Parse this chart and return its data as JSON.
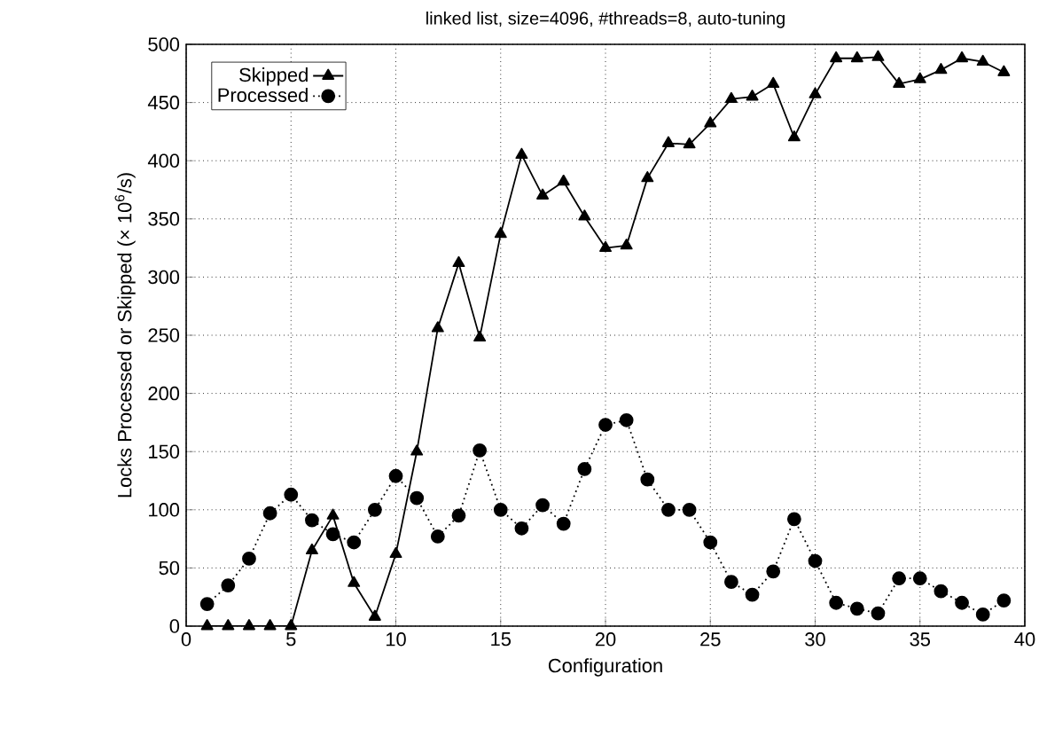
{
  "chart_data": {
    "type": "line",
    "title": "linked list, size=4096, #threads=8, auto-tuning",
    "xlabel": "Configuration",
    "ylabel": "Locks Processed or Skipped (× 10$^{6}$/s)",
    "x": [
      1,
      2,
      3,
      4,
      5,
      6,
      7,
      8,
      9,
      10,
      11,
      12,
      13,
      14,
      15,
      16,
      17,
      18,
      19,
      20,
      21,
      22,
      23,
      24,
      25,
      26,
      27,
      28,
      29,
      30,
      31,
      32,
      33,
      34,
      35,
      36,
      37,
      38,
      39
    ],
    "series": [
      {
        "name": "Skipped",
        "color": "#000000",
        "marker": "triangle",
        "line_style": "solid",
        "values": [
          0,
          0,
          0,
          0,
          0,
          65,
          95,
          37,
          8,
          62,
          150,
          256,
          312,
          248,
          337,
          405,
          370,
          382,
          352,
          325,
          327,
          385,
          415,
          414,
          432,
          453,
          455,
          466,
          420,
          457,
          488,
          488,
          489,
          466,
          470,
          478,
          488,
          485,
          476
        ]
      },
      {
        "name": "Processed",
        "color": "#000000",
        "marker": "circle",
        "line_style": "dotted",
        "values": [
          19,
          35,
          58,
          97,
          113,
          91,
          79,
          72,
          100,
          129,
          110,
          77,
          95,
          151,
          100,
          84,
          104,
          88,
          135,
          173,
          177,
          126,
          100,
          100,
          72,
          38,
          27,
          47,
          92,
          56,
          20,
          15,
          11,
          41,
          41,
          30,
          20,
          10,
          22
        ]
      }
    ],
    "xlim": [
      0,
      40
    ],
    "xticks": [
      0,
      5,
      10,
      15,
      20,
      25,
      30,
      35,
      40
    ],
    "ylim": [
      0,
      500
    ],
    "yticks": [
      0,
      50,
      100,
      150,
      200,
      250,
      300,
      350,
      400,
      450,
      500
    ],
    "grid": true,
    "legend": "top left"
  }
}
